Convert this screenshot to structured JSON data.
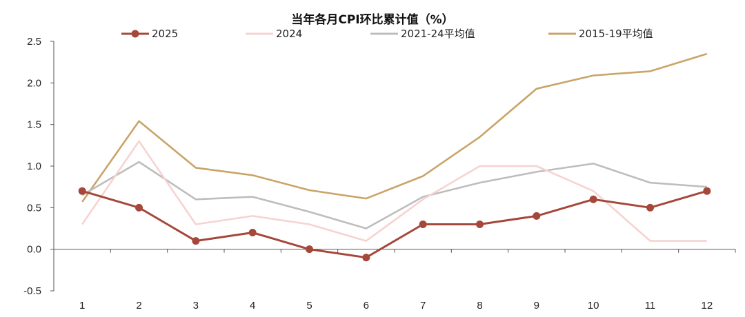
{
  "chart_data": {
    "type": "line",
    "title": "当年各月CPI环比累计值（%）",
    "xlabel": "",
    "ylabel": "",
    "categories": [
      "1",
      "2",
      "3",
      "4",
      "5",
      "6",
      "7",
      "8",
      "9",
      "10",
      "11",
      "12"
    ],
    "ylim": [
      -0.5,
      2.5
    ],
    "yticks": [
      "-0.5",
      "0.0",
      "0.5",
      "1.0",
      "1.5",
      "2.0",
      "2.5"
    ],
    "grid": false,
    "legend_position": "top",
    "series": [
      {
        "name": "2025",
        "color": "#A5473A",
        "markers": true,
        "values": [
          0.7,
          0.5,
          0.1,
          0.2,
          0.0,
          -0.1,
          0.3,
          0.3,
          0.4,
          0.6,
          0.5,
          0.7
        ]
      },
      {
        "name": "2024",
        "color": "#F6D3D0",
        "markers": false,
        "values": [
          0.3,
          1.3,
          0.3,
          0.4,
          0.3,
          0.1,
          0.6,
          1.0,
          1.0,
          0.7,
          0.1,
          0.1
        ]
      },
      {
        "name": "2021-24平均值",
        "color": "#BDBDBD",
        "markers": false,
        "values": [
          0.65,
          1.05,
          0.6,
          0.63,
          0.45,
          0.25,
          0.63,
          0.8,
          0.93,
          1.03,
          0.8,
          0.75
        ]
      },
      {
        "name": "2015-19平均值",
        "color": "#C9A467",
        "markers": false,
        "values": [
          0.57,
          1.54,
          0.98,
          0.89,
          0.71,
          0.61,
          0.88,
          1.35,
          1.93,
          2.09,
          2.14,
          2.35
        ]
      }
    ]
  }
}
